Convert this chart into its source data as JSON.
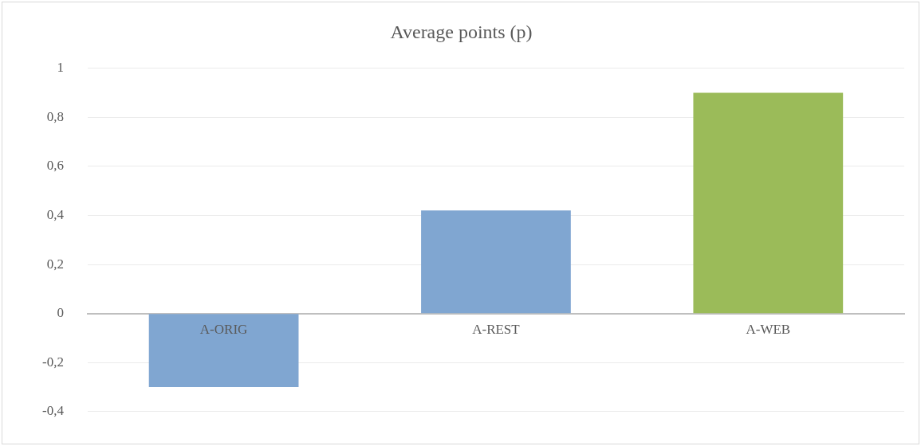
{
  "chart_data": {
    "type": "bar",
    "title": "Average points (p)",
    "categories": [
      "A-ORIG",
      "A-REST",
      "A-WEB"
    ],
    "values": [
      -0.3,
      0.42,
      0.9
    ],
    "colors": [
      "#80a6d1",
      "#80a6d1",
      "#9bbb59"
    ],
    "ylim": [
      -0.4,
      1
    ],
    "yticks": [
      {
        "value": -0.4,
        "label": "-0,4"
      },
      {
        "value": -0.2,
        "label": "-0,2"
      },
      0,
      {
        "value": 0.2,
        "label": "0,2"
      },
      {
        "value": 0.4,
        "label": "0,4"
      },
      {
        "value": 0.6,
        "label": "0,6"
      },
      {
        "value": 0.8,
        "label": "0,8"
      },
      1
    ],
    "grid": "y",
    "legend": false
  }
}
